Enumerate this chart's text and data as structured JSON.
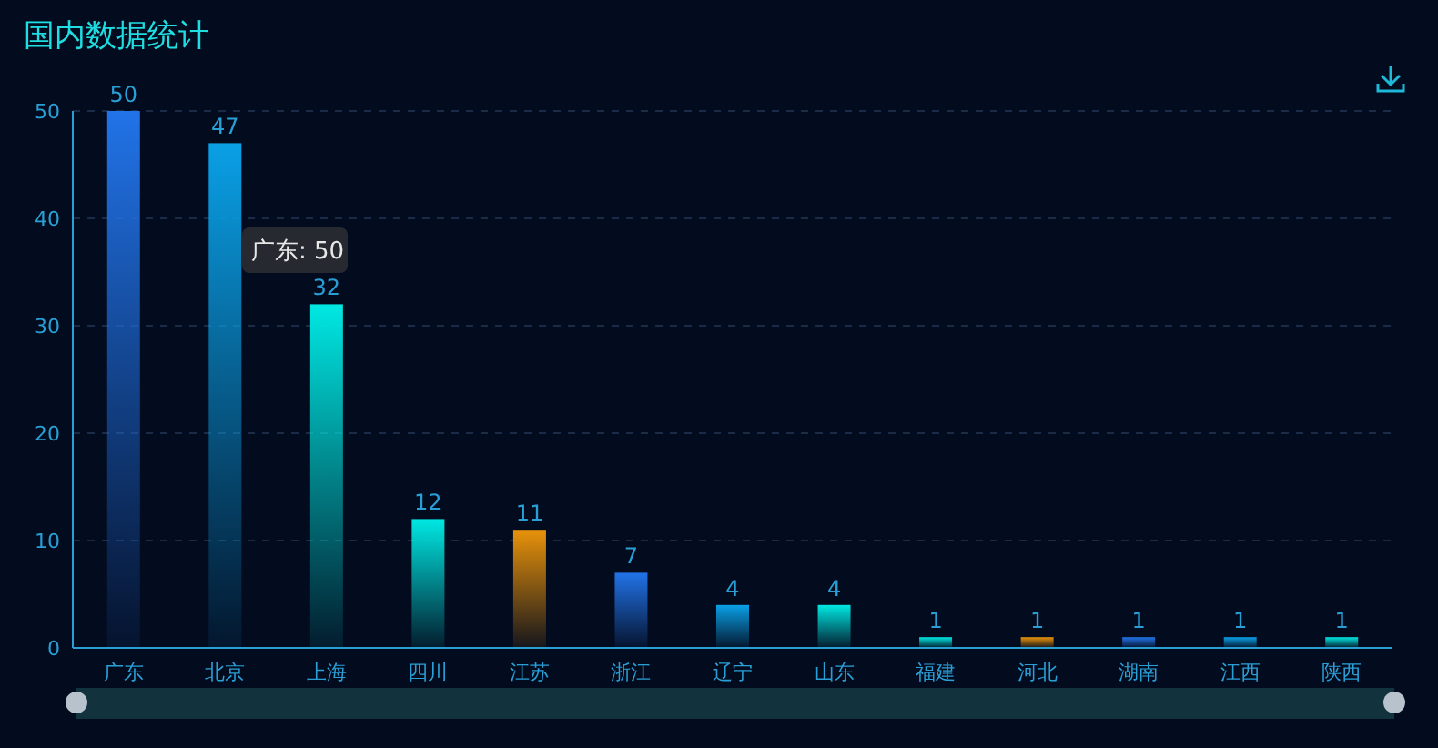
{
  "chart_data": {
    "type": "bar",
    "title": "国内数据统计",
    "categories": [
      "广东",
      "北京",
      "上海",
      "四川",
      "江苏",
      "浙江",
      "辽宁",
      "山东",
      "福建",
      "河北",
      "湖南",
      "江西",
      "陕西"
    ],
    "values": [
      50,
      47,
      32,
      12,
      11,
      7,
      4,
      4,
      1,
      1,
      1,
      1,
      1
    ],
    "colors": [
      "#2173e8",
      "#0aa0e6",
      "#00e8e3",
      "#00e8e3",
      "#e8920a",
      "#2173e8",
      "#0aa0e6",
      "#00e8e3",
      "#00e8e3",
      "#e8920a",
      "#2173e8",
      "#0aa0e6",
      "#00e8e3"
    ],
    "ylim": [
      0,
      50
    ],
    "yticks": [
      0,
      10,
      20,
      30,
      40,
      50
    ],
    "grid": "y",
    "data_labels": true,
    "annotations": [
      "广东: 50"
    ]
  }
}
